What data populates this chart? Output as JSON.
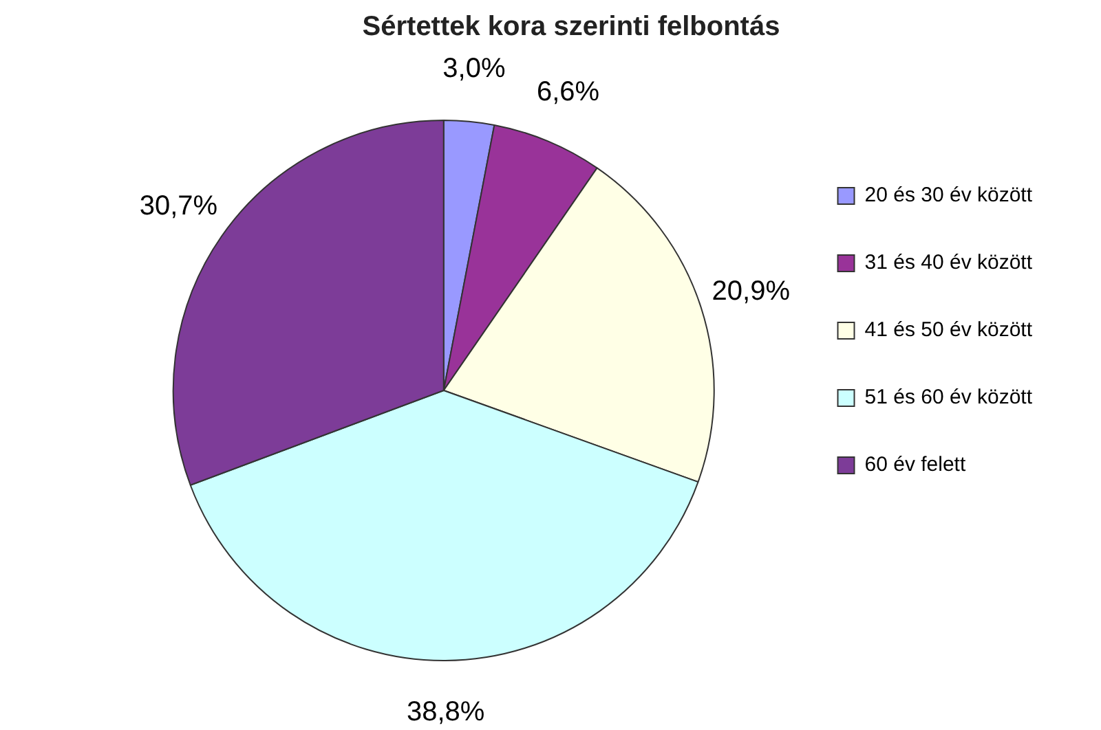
{
  "chart_data": {
    "type": "pie",
    "title": "Sértettek kora szerinti felbontás",
    "categories": [
      "20 és 30 év között",
      "31 és 40 év között",
      "41 és 50 év között",
      "51 és 60 év között",
      "60 év felett"
    ],
    "values": [
      3.0,
      6.6,
      20.9,
      38.8,
      30.7
    ],
    "value_labels": [
      "3,0%",
      "6,6%",
      "20,9%",
      "38,8%",
      "30,7%"
    ],
    "colors": [
      "#9999ff",
      "#993399",
      "#ffffe6",
      "#ccffff",
      "#7d3c98"
    ],
    "legend": "right"
  }
}
